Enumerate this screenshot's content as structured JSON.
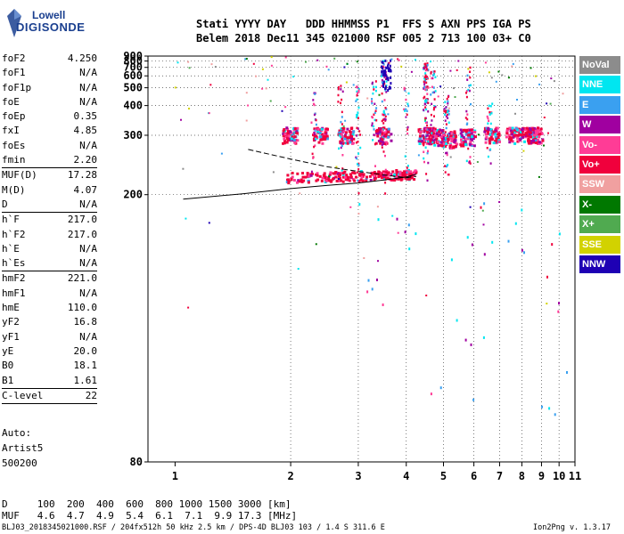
{
  "logo": {
    "line1": "Lowell",
    "line2": "DIGISONDE"
  },
  "header": {
    "line1": "Stati YYYY DAY   DDD HHMMSS P1  FFS S AXN PPS IGA PS",
    "line2": "Belem 2018 Dec11 345 021000 RSF 005 2 713 100 03+ C0"
  },
  "params": {
    "g1": [
      [
        "foF2",
        "4.250"
      ],
      [
        "foF1",
        "N/A"
      ],
      [
        "foF1p",
        "N/A"
      ],
      [
        "foE",
        "N/A"
      ],
      [
        "foEp",
        "0.35"
      ],
      [
        "fxI",
        "4.85"
      ],
      [
        "foEs",
        "N/A"
      ],
      [
        "fmin",
        "2.20"
      ]
    ],
    "g2": [
      [
        "MUF(D)",
        "17.28"
      ],
      [
        "M(D)",
        "4.07"
      ],
      [
        "D",
        "N/A"
      ]
    ],
    "g3": [
      [
        "h`F",
        "217.0"
      ],
      [
        "h`F2",
        "217.0"
      ],
      [
        "h`E",
        "N/A"
      ],
      [
        "h`Es",
        "N/A"
      ]
    ],
    "g4": [
      [
        "hmF2",
        "221.0"
      ],
      [
        "hmF1",
        "N/A"
      ],
      [
        "hmE",
        "110.0"
      ],
      [
        "yF2",
        "16.8"
      ],
      [
        "yF1",
        "N/A"
      ],
      [
        "yE",
        "20.0"
      ],
      [
        "B0",
        "18.1"
      ],
      [
        "B1",
        "1.61"
      ]
    ],
    "g5": [
      [
        "C-level",
        "22"
      ]
    ]
  },
  "auto": {
    "l1": "Auto:",
    "l2": "Artist5",
    "l3": "500200"
  },
  "legend": [
    {
      "label": "NoVal",
      "color": "#8c8c8c"
    },
    {
      "label": "NNE",
      "color": "#00e6f0"
    },
    {
      "label": "E",
      "color": "#3aa0f0"
    },
    {
      "label": "W",
      "color": "#a000a0"
    },
    {
      "label": "Vo-",
      "color": "#ff3c96"
    },
    {
      "label": "Vo+",
      "color": "#f0003c"
    },
    {
      "label": "SSW",
      "color": "#f0a0a0"
    },
    {
      "label": "X-",
      "color": "#007800"
    },
    {
      "label": "X+",
      "color": "#50aa50"
    },
    {
      "label": "SSE",
      "color": "#d2d200"
    },
    {
      "label": "NNW",
      "color": "#1e00b4"
    }
  ],
  "dmuf": {
    "d_row": "D     100  200  400  600  800 1000 1500 3000 [km]",
    "muf_row": "MUF   4.6  4.7  4.9  5.4  6.1  7.1  9.9 17.3 [MHz]"
  },
  "footer": {
    "left": "BLJ03_2018345021000.RSF / 204fx512h 50 kHz 2.5 km / DPS-4D BLJ03 103 / 1.4 S 311.6 E",
    "right": "Ion2Png v. 1.3.17"
  },
  "chart_data": {
    "type": "scatter",
    "x_ticks": [
      1,
      2,
      3,
      4,
      5,
      6,
      7,
      8,
      9,
      10,
      11
    ],
    "y_ticks": [
      80,
      200,
      300,
      400,
      500,
      600,
      700,
      800,
      900
    ],
    "xlim": [
      0.85,
      11.0
    ],
    "ylim": [
      80,
      900
    ],
    "scale_x": "log",
    "scale_y": "reciprocal",
    "grid": "dotted",
    "traces": [
      {
        "name": "o-trace",
        "x": [
          1.05,
          1.5,
          2.0,
          2.5,
          3.0,
          3.5,
          4.0,
          4.25
        ],
        "y": [
          195,
          201,
          207,
          211,
          214,
          218,
          222,
          226
        ]
      },
      {
        "name": "x-trace",
        "x": [
          1.55,
          2.0,
          2.5,
          3.0,
          3.5,
          4.0,
          4.25
        ],
        "y": [
          268,
          250,
          237,
          230,
          225,
          221,
          223
        ]
      }
    ]
  }
}
